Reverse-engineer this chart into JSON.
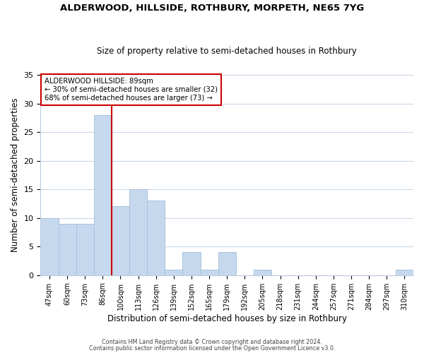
{
  "title": "ALDERWOOD, HILLSIDE, ROTHBURY, MORPETH, NE65 7YG",
  "subtitle": "Size of property relative to semi-detached houses in Rothbury",
  "xlabel": "Distribution of semi-detached houses by size in Rothbury",
  "ylabel": "Number of semi-detached properties",
  "categories": [
    "47sqm",
    "60sqm",
    "73sqm",
    "86sqm",
    "100sqm",
    "113sqm",
    "126sqm",
    "139sqm",
    "152sqm",
    "165sqm",
    "179sqm",
    "192sqm",
    "205sqm",
    "218sqm",
    "231sqm",
    "244sqm",
    "257sqm",
    "271sqm",
    "284sqm",
    "297sqm",
    "310sqm"
  ],
  "values": [
    10,
    9,
    9,
    28,
    12,
    15,
    13,
    1,
    4,
    1,
    4,
    0,
    1,
    0,
    0,
    0,
    0,
    0,
    0,
    0,
    1
  ],
  "bar_color": "#c5d8ed",
  "bar_edge_color": "#a8c4dc",
  "marker_line_color": "#cc0000",
  "annotation_line1": "ALDERWOOD HILLSIDE: 89sqm",
  "annotation_line2": "← 30% of semi-detached houses are smaller (32)",
  "annotation_line3": "68% of semi-detached houses are larger (73) →",
  "ylim": [
    0,
    35
  ],
  "yticks": [
    0,
    5,
    10,
    15,
    20,
    25,
    30,
    35
  ],
  "footer1": "Contains HM Land Registry data © Crown copyright and database right 2024.",
  "footer2": "Contains public sector information licensed under the Open Government Licence v3.0.",
  "bg_color": "#ffffff",
  "plot_bg_color": "#ffffff",
  "grid_color": "#c8d8e8"
}
